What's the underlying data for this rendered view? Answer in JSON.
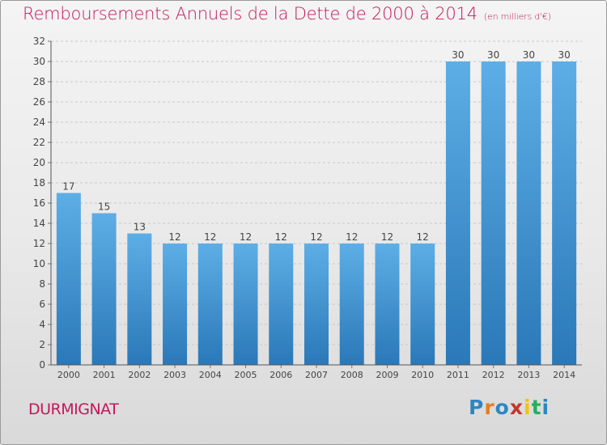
{
  "title": {
    "main": "Remboursements Annuels de la Dette de 2000 à 2014",
    "unit": "(en milliers d'€)"
  },
  "commune": "DURMIGNAT",
  "logo": {
    "text": "Proxiti",
    "letter_colors": [
      "#2e86c1",
      "#e67e22",
      "#2e86c1",
      "#c0392b",
      "#f1c40f",
      "#27ae60",
      "#2e86c1"
    ]
  },
  "colors": {
    "title": "#c4175a",
    "bar_top": "#5daee6",
    "bar_bottom": "#2a78b8",
    "grid": "#c8c8c8"
  },
  "chart_data": {
    "type": "bar",
    "title": "Remboursements Annuels de la Dette de 2000 à 2014",
    "xlabel": "",
    "ylabel": "",
    "categories": [
      "2000",
      "2001",
      "2002",
      "2003",
      "2004",
      "2005",
      "2006",
      "2007",
      "2008",
      "2009",
      "2010",
      "2011",
      "2012",
      "2013",
      "2014"
    ],
    "values": [
      17,
      15,
      13,
      12,
      12,
      12,
      12,
      12,
      12,
      12,
      12,
      30,
      30,
      30,
      30
    ],
    "ylim": [
      0,
      32
    ],
    "yticks": [
      0,
      2,
      4,
      6,
      8,
      10,
      12,
      14,
      16,
      18,
      20,
      22,
      24,
      26,
      28,
      30,
      32
    ],
    "grid": true
  }
}
